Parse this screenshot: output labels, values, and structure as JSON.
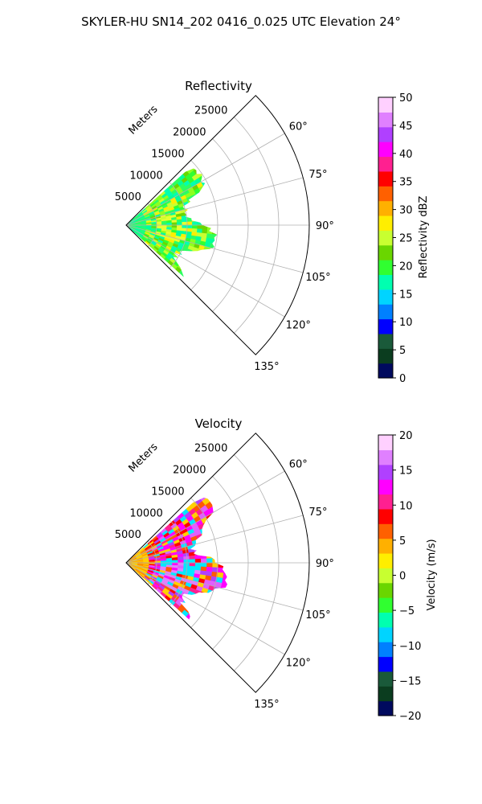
{
  "figure": {
    "suptitle": "SKYLER-HU  SN14_202  0416_0.025 UTC Elevation 24°"
  },
  "chart_data": [
    {
      "type": "heatmap",
      "projection": "polar-sector",
      "title": "Reflectivity",
      "radial_label": "Meters",
      "theta_range_deg": [
        45,
        135
      ],
      "r_range": [
        0,
        30000
      ],
      "r_ticks": [
        5000,
        10000,
        15000,
        20000,
        25000
      ],
      "r_tick_labels": [
        "5000",
        "10000",
        "15000",
        "20000",
        "25000"
      ],
      "theta_ticks": [
        60,
        75,
        90,
        105,
        120,
        135
      ],
      "theta_tick_labels": [
        "60°",
        "75°",
        "90°",
        "105°",
        "120°",
        "135°"
      ],
      "grid": true,
      "echo_extent": {
        "theta_deg": [
          48,
          132
        ],
        "r_max": 15000
      },
      "colorbar": {
        "label": "Reflectivity dBZ",
        "range": [
          0,
          50
        ],
        "ticks": [
          0,
          5,
          10,
          15,
          20,
          25,
          30,
          35,
          40,
          45,
          50
        ],
        "tick_labels": [
          "0",
          "5",
          "10",
          "15",
          "20",
          "25",
          "30",
          "35",
          "40",
          "45",
          "50"
        ],
        "stops": [
          "#000a5e",
          "#0b3d1f",
          "#1a5a3a",
          "#0000ff",
          "#0080ff",
          "#00d4ff",
          "#00ffb0",
          "#30ff30",
          "#6ad600",
          "#c8ff30",
          "#ffee00",
          "#ffb000",
          "#ff6000",
          "#ff0000",
          "#ff2090",
          "#ff00ff",
          "#b040ff",
          "#e080ff",
          "#ffd0ff"
        ]
      }
    },
    {
      "type": "heatmap",
      "projection": "polar-sector",
      "title": "Velocity",
      "radial_label": "Meters",
      "theta_range_deg": [
        45,
        135
      ],
      "r_range": [
        0,
        30000
      ],
      "r_ticks": [
        5000,
        10000,
        15000,
        20000,
        25000
      ],
      "r_tick_labels": [
        "5000",
        "10000",
        "15000",
        "20000",
        "25000"
      ],
      "theta_ticks": [
        60,
        75,
        90,
        105,
        120,
        135
      ],
      "theta_tick_labels": [
        "60°",
        "75°",
        "90°",
        "105°",
        "120°",
        "135°"
      ],
      "grid": true,
      "echo_extent": {
        "theta_deg": [
          48,
          132
        ],
        "r_max": 17000
      },
      "colorbar": {
        "label": "Velocity (m/s)",
        "range": [
          -20,
          20
        ],
        "ticks": [
          -20,
          -15,
          -10,
          -5,
          0,
          5,
          10,
          15,
          20
        ],
        "tick_labels": [
          "−20",
          "−15",
          "−10",
          "−5",
          "0",
          "5",
          "10",
          "15",
          "20"
        ],
        "stops": [
          "#000a5e",
          "#0b3d1f",
          "#1a5a3a",
          "#0000ff",
          "#0080ff",
          "#00d4ff",
          "#00ffb0",
          "#30ff30",
          "#6ad600",
          "#c8ff30",
          "#ffee00",
          "#ffb000",
          "#ff6000",
          "#ff0000",
          "#ff2090",
          "#ff00ff",
          "#b040ff",
          "#e080ff",
          "#ffd0ff"
        ]
      }
    }
  ]
}
